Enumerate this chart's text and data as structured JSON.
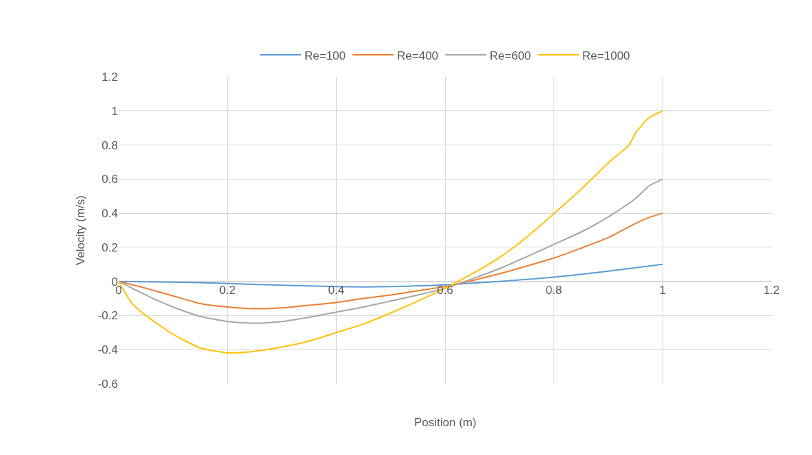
{
  "chart_data": {
    "type": "line",
    "xlabel": "Position (m)",
    "ylabel": "Velocity (m/s)",
    "xlim": [
      0,
      1.2
    ],
    "xticks": [
      0,
      0.2,
      0.4,
      0.6,
      0.8,
      1,
      1.2
    ],
    "ylim": [
      -0.6,
      1.2
    ],
    "yticks": [
      -0.6,
      -0.4,
      -0.2,
      0,
      0.2,
      0.4,
      0.6,
      0.8,
      1,
      1.2
    ],
    "grid": true,
    "legend": "top",
    "marker": "none",
    "line_style": "solid",
    "series": [
      {
        "name": "Re=100",
        "color": "#5b9bd5",
        "x": [
          0,
          0.1,
          0.2,
          0.3,
          0.4,
          0.45,
          0.5,
          0.6,
          0.7,
          0.8,
          0.9,
          1
        ],
        "values": [
          0,
          -0.004,
          -0.012,
          -0.022,
          -0.03,
          -0.032,
          -0.03,
          -0.02,
          0,
          0.025,
          0.06,
          0.1
        ]
      },
      {
        "name": "Re=400",
        "color": "#ed7d31",
        "x": [
          0,
          0.05,
          0.1,
          0.15,
          0.2,
          0.25,
          0.3,
          0.35,
          0.4,
          0.45,
          0.5,
          0.55,
          0.6,
          0.65,
          0.7,
          0.75,
          0.8,
          0.85,
          0.9,
          0.95,
          0.975,
          1
        ],
        "values": [
          0,
          -0.04,
          -0.085,
          -0.13,
          -0.15,
          -0.16,
          -0.155,
          -0.14,
          -0.124,
          -0.1,
          -0.08,
          -0.055,
          -0.03,
          0.005,
          0.045,
          0.09,
          0.137,
          0.195,
          0.257,
          0.34,
          0.375,
          0.4
        ]
      },
      {
        "name": "Re=600",
        "color": "#a5a5a5",
        "x": [
          0,
          0.05,
          0.1,
          0.15,
          0.2,
          0.25,
          0.3,
          0.35,
          0.4,
          0.45,
          0.5,
          0.55,
          0.6,
          0.65,
          0.7,
          0.75,
          0.8,
          0.85,
          0.9,
          0.95,
          0.975,
          1
        ],
        "values": [
          0,
          -0.08,
          -0.15,
          -0.205,
          -0.235,
          -0.245,
          -0.235,
          -0.21,
          -0.18,
          -0.15,
          -0.115,
          -0.08,
          -0.04,
          0.015,
          0.075,
          0.145,
          0.217,
          0.29,
          0.378,
          0.486,
          0.56,
          0.6
        ]
      },
      {
        "name": "Re=1000",
        "color": "#ffc000",
        "x": [
          0,
          0.025,
          0.05,
          0.1,
          0.15,
          0.2,
          0.25,
          0.3,
          0.35,
          0.4,
          0.45,
          0.5,
          0.55,
          0.6,
          0.65,
          0.7,
          0.75,
          0.8,
          0.85,
          0.9,
          0.938,
          0.95,
          0.975,
          1
        ],
        "values": [
          0,
          -0.13,
          -0.2,
          -0.31,
          -0.39,
          -0.418,
          -0.41,
          -0.385,
          -0.35,
          -0.3,
          -0.25,
          -0.185,
          -0.115,
          -0.04,
          0.045,
          0.14,
          0.26,
          0.398,
          0.54,
          0.695,
          0.8,
          0.87,
          0.96,
          1
        ]
      }
    ]
  }
}
